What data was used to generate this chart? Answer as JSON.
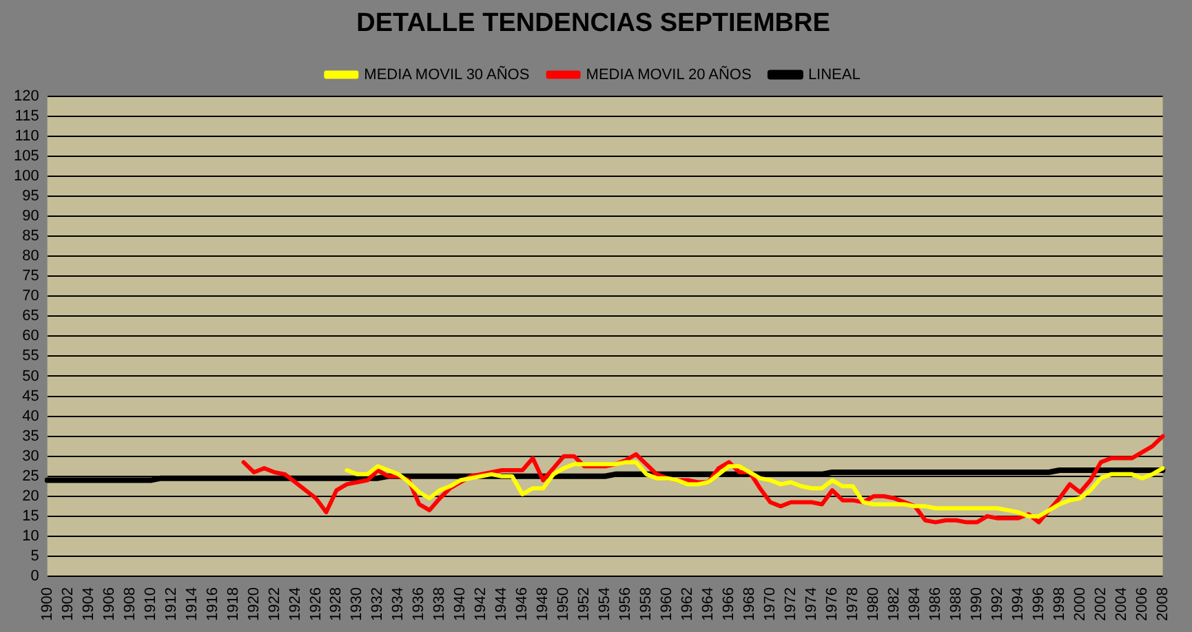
{
  "chart_data": {
    "type": "line",
    "title": "DETALLE TENDENCIAS SEPTIEMBRE",
    "categories": [
      "1900",
      null,
      "1902",
      null,
      "1904",
      null,
      "1906",
      null,
      "1908",
      null,
      "1910",
      null,
      "1912",
      null,
      "1914",
      null,
      "1916",
      null,
      "1918",
      null,
      "1920",
      null,
      "1922",
      null,
      "1924",
      null,
      "1926",
      null,
      "1928",
      null,
      "1930",
      null,
      "1932",
      null,
      "1934",
      null,
      "1936",
      null,
      "1938",
      null,
      "1940",
      null,
      "1942",
      null,
      "1944",
      null,
      "1946",
      null,
      "1948",
      null,
      "1950",
      null,
      "1952",
      null,
      "1954",
      null,
      "1956",
      null,
      "1958",
      null,
      "1960",
      null,
      "1962",
      null,
      "1964",
      null,
      "1966",
      null,
      "1968",
      null,
      "1970",
      null,
      "1972",
      null,
      "1974",
      null,
      "1976",
      null,
      "1978",
      null,
      "1980",
      null,
      "1982",
      null,
      "1984",
      null,
      "1986",
      null,
      "1988",
      null,
      "1990",
      null,
      "1992",
      null,
      "1994",
      null,
      "1996",
      null,
      "1998",
      null,
      "2000",
      null,
      "2002",
      null,
      "2004",
      null,
      "2006",
      null,
      "2008"
    ],
    "series": [
      {
        "name": "MEDIA MOVIL 30 AÑOS",
        "color": "#ffff00",
        "values": [
          null,
          null,
          null,
          null,
          null,
          null,
          null,
          null,
          null,
          null,
          null,
          null,
          null,
          null,
          null,
          null,
          null,
          null,
          null,
          null,
          null,
          null,
          null,
          null,
          null,
          null,
          null,
          null,
          null,
          26.5,
          25.5,
          25.5,
          27.5,
          26.5,
          25.5,
          23.5,
          21,
          19.5,
          21.5,
          22.5,
          24,
          24.5,
          25,
          25.5,
          25,
          25,
          20.5,
          22,
          22,
          25.5,
          27,
          28,
          28,
          28,
          28,
          28,
          28.5,
          28.5,
          25.5,
          24.5,
          24.5,
          24,
          23,
          23,
          23.5,
          25.5,
          27.5,
          27.5,
          26,
          24.5,
          24,
          23,
          23.5,
          22.5,
          22,
          22,
          24,
          22.5,
          22.5,
          18.5,
          18,
          18,
          18,
          18,
          17.5,
          17.5,
          17,
          17,
          17,
          17,
          17,
          17,
          17,
          16.5,
          16,
          15,
          15,
          16.5,
          18,
          19,
          19.5,
          21.5,
          24.5,
          25.5,
          25.5,
          25.5,
          24.5,
          25.5,
          27
        ]
      },
      {
        "name": "MEDIA MOVIL 20 AÑOS",
        "color": "#ff0000",
        "values": [
          null,
          null,
          null,
          null,
          null,
          null,
          null,
          null,
          null,
          null,
          null,
          null,
          null,
          null,
          null,
          null,
          null,
          null,
          null,
          28.5,
          26,
          27,
          26,
          25.5,
          23.5,
          21.5,
          19.5,
          16,
          21.5,
          23,
          23.5,
          24,
          26.5,
          25,
          25,
          24,
          18,
          16.5,
          19.5,
          22,
          23.5,
          25,
          25.5,
          26,
          26.5,
          26.5,
          26.5,
          29.5,
          24,
          27,
          30,
          30,
          27.5,
          27.5,
          27.5,
          28,
          29,
          30.5,
          28,
          25.5,
          24.5,
          24,
          24,
          23.5,
          23.5,
          27,
          28.5,
          26,
          26,
          22,
          18.5,
          17.5,
          18.5,
          18.5,
          18.5,
          18,
          21.5,
          19,
          19,
          18.5,
          20,
          20,
          19.5,
          18.5,
          17.5,
          14,
          13.5,
          14,
          14,
          13.5,
          13.5,
          15,
          14.5,
          14.5,
          14.5,
          15.5,
          13.5,
          16.5,
          19.5,
          23,
          21,
          24,
          28.5,
          29.5,
          29.5,
          29.5,
          31,
          32.5,
          35
        ]
      },
      {
        "name": "LINEAL",
        "color": "#000000",
        "values": [
          24,
          24,
          24,
          24,
          24,
          24,
          24,
          24,
          24,
          24,
          24,
          24.5,
          24.5,
          24.5,
          24.5,
          24.5,
          24.5,
          24.5,
          24.5,
          24.5,
          24.5,
          24.5,
          24.5,
          24.5,
          24.5,
          24.5,
          24.5,
          24.5,
          24.5,
          24.5,
          24.5,
          24.5,
          24.5,
          25,
          25,
          25,
          25,
          25,
          25,
          25,
          25,
          25,
          25,
          25,
          25,
          25,
          25,
          25,
          25,
          25,
          25,
          25,
          25,
          25,
          25,
          25.5,
          25.5,
          25.5,
          25.5,
          25.5,
          25.5,
          25.5,
          25.5,
          25.5,
          25.5,
          25.5,
          25.5,
          25.5,
          25.5,
          25.5,
          25.5,
          25.5,
          25.5,
          25.5,
          25.5,
          25.5,
          26,
          26,
          26,
          26,
          26,
          26,
          26,
          26,
          26,
          26,
          26,
          26,
          26,
          26,
          26,
          26,
          26,
          26,
          26,
          26,
          26,
          26,
          26.5,
          26.5,
          26.5,
          26.5,
          26.5,
          26.5,
          26.5,
          26.5,
          26.5,
          26.5,
          26.5
        ]
      }
    ],
    "ylim": [
      0,
      120
    ],
    "yticks": [
      0,
      5,
      10,
      15,
      20,
      25,
      30,
      35,
      40,
      45,
      50,
      55,
      60,
      65,
      70,
      75,
      80,
      85,
      90,
      95,
      100,
      105,
      110,
      115,
      120
    ],
    "grid": "y",
    "legend": "top",
    "marker": "none",
    "line_style": "solid"
  }
}
